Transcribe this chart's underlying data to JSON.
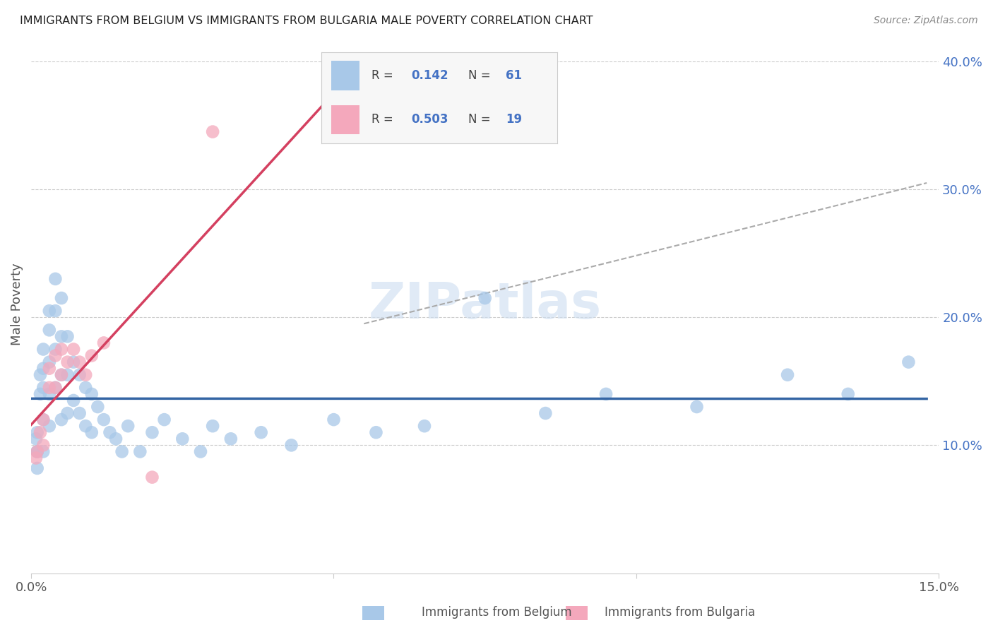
{
  "title": "IMMIGRANTS FROM BELGIUM VS IMMIGRANTS FROM BULGARIA MALE POVERTY CORRELATION CHART",
  "source": "Source: ZipAtlas.com",
  "ylabel": "Male Poverty",
  "xlim": [
    0.0,
    0.15
  ],
  "ylim": [
    0.0,
    0.42
  ],
  "R_belgium": 0.142,
  "N_belgium": 61,
  "R_bulgaria": 0.503,
  "N_bulgaria": 19,
  "color_belgium": "#a8c8e8",
  "color_bulgaria": "#f4a8bc",
  "line_color_belgium": "#3465a4",
  "line_color_bulgaria": "#d44060",
  "legend_R_N_color": "#4472c4",
  "watermark_color": "#ccddf0",
  "bel_x": [
    0.0008,
    0.001,
    0.001,
    0.001,
    0.001,
    0.0015,
    0.0015,
    0.002,
    0.002,
    0.002,
    0.002,
    0.002,
    0.003,
    0.003,
    0.003,
    0.003,
    0.003,
    0.004,
    0.004,
    0.004,
    0.004,
    0.005,
    0.005,
    0.005,
    0.005,
    0.006,
    0.006,
    0.006,
    0.007,
    0.007,
    0.008,
    0.008,
    0.009,
    0.009,
    0.01,
    0.01,
    0.011,
    0.012,
    0.013,
    0.014,
    0.015,
    0.016,
    0.018,
    0.02,
    0.022,
    0.025,
    0.028,
    0.03,
    0.033,
    0.038,
    0.043,
    0.05,
    0.057,
    0.065,
    0.075,
    0.085,
    0.095,
    0.11,
    0.125,
    0.135,
    0.145
  ],
  "bel_y": [
    0.105,
    0.11,
    0.095,
    0.082,
    0.095,
    0.155,
    0.14,
    0.175,
    0.16,
    0.145,
    0.12,
    0.095,
    0.205,
    0.19,
    0.165,
    0.14,
    0.115,
    0.23,
    0.205,
    0.175,
    0.145,
    0.215,
    0.185,
    0.155,
    0.12,
    0.185,
    0.155,
    0.125,
    0.165,
    0.135,
    0.155,
    0.125,
    0.145,
    0.115,
    0.14,
    0.11,
    0.13,
    0.12,
    0.11,
    0.105,
    0.095,
    0.115,
    0.095,
    0.11,
    0.12,
    0.105,
    0.095,
    0.115,
    0.105,
    0.11,
    0.1,
    0.12,
    0.11,
    0.115,
    0.215,
    0.125,
    0.14,
    0.13,
    0.155,
    0.14,
    0.165
  ],
  "bul_x": [
    0.0008,
    0.001,
    0.0015,
    0.002,
    0.002,
    0.003,
    0.003,
    0.004,
    0.004,
    0.005,
    0.005,
    0.006,
    0.007,
    0.008,
    0.009,
    0.01,
    0.012,
    0.02,
    0.03
  ],
  "bul_y": [
    0.09,
    0.095,
    0.11,
    0.12,
    0.1,
    0.16,
    0.145,
    0.17,
    0.145,
    0.175,
    0.155,
    0.165,
    0.175,
    0.165,
    0.155,
    0.17,
    0.18,
    0.075,
    0.345
  ],
  "dash_line_x": [
    0.055,
    0.148
  ],
  "dash_line_y": [
    0.195,
    0.305
  ],
  "bel_line_x": [
    0.0,
    0.148
  ],
  "bul_line_x": [
    0.0,
    0.048
  ],
  "dot_size": 180
}
